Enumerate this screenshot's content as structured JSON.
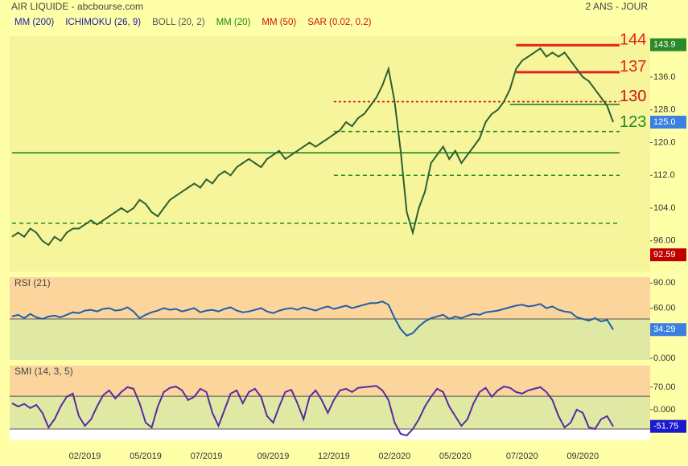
{
  "chart_data": [
    {
      "type": "line",
      "title": "AIR LIQUIDE - abcbourse.com",
      "subtitle": "2 ANS - JOUR",
      "indicators": [
        {
          "name": "MM (200)",
          "color": "#1a1aa8"
        },
        {
          "name": "ICHIMOKU (26, 9)",
          "color": "#1a1aa8"
        },
        {
          "name": "BOLL (20, 2)",
          "color": "#555555"
        },
        {
          "name": "MM (20)",
          "color": "#1f8a1f"
        },
        {
          "name": "MM (50)",
          "color": "#d01010"
        },
        {
          "name": "SAR (0.02, 0.2)",
          "color": "#d01010"
        }
      ],
      "color": "#2e5f2e",
      "background": "#f6f59c",
      "values": [
        97,
        98,
        97,
        99,
        98,
        96,
        95,
        97,
        96,
        98,
        99,
        99,
        100,
        101,
        100,
        101,
        102,
        103,
        104,
        103,
        104,
        106,
        105,
        103,
        102,
        104,
        106,
        107,
        108,
        109,
        110,
        109,
        111,
        110,
        112,
        113,
        112,
        114,
        115,
        116,
        115,
        114,
        116,
        117,
        118,
        116,
        117,
        118,
        119,
        120,
        119,
        120,
        121,
        122,
        123,
        125,
        124,
        126,
        127,
        129,
        131,
        134,
        138,
        130,
        118,
        103,
        98,
        104,
        108,
        115,
        117,
        119,
        116,
        118,
        115,
        117,
        119,
        121,
        125,
        127,
        128,
        130,
        133,
        138,
        140,
        141,
        142,
        143,
        141,
        142,
        141,
        142,
        140,
        138,
        136,
        135,
        133,
        131,
        129,
        125
      ],
      "ylim": [
        88.5,
        146
      ],
      "yticks": [
        {
          "value": 96,
          "label": "96.00"
        },
        {
          "value": 104,
          "label": "104.0"
        },
        {
          "value": 112,
          "label": "112.0"
        },
        {
          "value": 120,
          "label": "120.0"
        },
        {
          "value": 128,
          "label": "128.0"
        },
        {
          "value": 136,
          "label": "136.0"
        }
      ],
      "levels": [
        {
          "value": 143.8,
          "label": "144",
          "color": "#e8201a",
          "style": "solid",
          "start": 83
        },
        {
          "value": 137.2,
          "label": "137",
          "color": "#e8201a",
          "style": "solid",
          "start": 83
        },
        {
          "value": 130,
          "label": "130",
          "color": "#d01010",
          "style": "dotted",
          "start": 53
        },
        {
          "value": 129.3,
          "color": "#1f8a1f",
          "style": "solid",
          "start": 82
        },
        {
          "value": 122.7,
          "label": "123",
          "color": "#1f8a1f",
          "style": "dashed",
          "start": 53
        },
        {
          "value": 117.5,
          "color": "#1f8a1f",
          "style": "solid",
          "start": 0
        },
        {
          "value": 112,
          "color": "#1f8a1f",
          "style": "dashed",
          "start": 53
        },
        {
          "value": 100.3,
          "color": "#1f8a1f",
          "style": "dashed",
          "start": 0
        }
      ],
      "markers": [
        {
          "value": 143.9,
          "color": "#2a8a2a"
        },
        {
          "value": 125.0,
          "label": "125.0",
          "color": "#3b7fe0"
        },
        {
          "value": 92.59,
          "color": "#c00000"
        }
      ]
    },
    {
      "type": "line",
      "title": "RSI (21)",
      "color": "#1f5faa",
      "zone_colors": [
        "#fcd59c",
        "#dfe9a3"
      ],
      "reference_lines": [
        47
      ],
      "values": [
        50,
        52,
        48,
        53,
        49,
        47,
        50,
        51,
        49,
        52,
        55,
        54,
        57,
        58,
        56,
        59,
        60,
        57,
        58,
        61,
        56,
        48,
        52,
        55,
        57,
        60,
        58,
        59,
        56,
        58,
        60,
        55,
        57,
        58,
        56,
        59,
        61,
        57,
        55,
        56,
        58,
        60,
        56,
        54,
        57,
        59,
        60,
        58,
        61,
        59,
        57,
        60,
        62,
        59,
        61,
        63,
        60,
        62,
        64,
        66,
        66,
        68,
        64,
        48,
        35,
        27,
        30,
        38,
        44,
        48,
        50,
        52,
        47,
        50,
        48,
        51,
        53,
        52,
        55,
        56,
        57,
        59,
        61,
        63,
        64,
        62,
        63,
        65,
        60,
        62,
        58,
        56,
        55,
        49,
        47,
        45,
        48,
        44,
        46,
        34.29
      ],
      "ylim": [
        -2,
        97
      ],
      "yticks": [
        {
          "value": 0,
          "label": "0.000"
        },
        {
          "value": 60,
          "label": "60.00"
        },
        {
          "value": 90,
          "label": "90.00"
        }
      ],
      "markers": [
        {
          "value": 34.29,
          "color": "#3b7fe0"
        }
      ]
    },
    {
      "type": "line",
      "title": "SMI (14, 3, 5)",
      "color": "#5a2aa0",
      "zone_colors": [
        "#fcd59c",
        "#dfe9a3"
      ],
      "reference_lines": [
        42,
        -60
      ],
      "values": [
        20,
        10,
        18,
        5,
        15,
        -10,
        -55,
        -30,
        10,
        40,
        50,
        -20,
        -50,
        -30,
        10,
        45,
        60,
        35,
        55,
        70,
        65,
        20,
        -40,
        -55,
        10,
        55,
        68,
        72,
        60,
        30,
        40,
        65,
        55,
        -10,
        -50,
        0,
        50,
        60,
        20,
        55,
        65,
        40,
        -20,
        -40,
        10,
        55,
        62,
        20,
        -30,
        40,
        60,
        30,
        -10,
        30,
        60,
        65,
        55,
        68,
        70,
        72,
        74,
        60,
        30,
        -40,
        -75,
        -80,
        -60,
        -30,
        10,
        40,
        65,
        55,
        10,
        -20,
        -50,
        -30,
        20,
        55,
        68,
        40,
        60,
        72,
        68,
        55,
        50,
        60,
        65,
        70,
        55,
        30,
        -20,
        -55,
        -40,
        0,
        -10,
        -55,
        -60,
        -30,
        -20,
        -51.75
      ],
      "ylim": [
        -95,
        137
      ],
      "yticks": [
        {
          "value": 0,
          "label": "0.000"
        },
        {
          "value": 70,
          "label": "70.00"
        }
      ],
      "markers": [
        {
          "value": -51.75,
          "color": "#1a1acc"
        }
      ],
      "categories": [
        null,
        null,
        null,
        null,
        null,
        null,
        null,
        null,
        null,
        null,
        null,
        null,
        "02/2019",
        null,
        null,
        null,
        null,
        null,
        null,
        null,
        null,
        null,
        "05/2019",
        null,
        null,
        null,
        null,
        null,
        null,
        null,
        null,
        null,
        "07/2019",
        null,
        null,
        null,
        null,
        null,
        null,
        null,
        null,
        null,
        null,
        "09/2019",
        null,
        null,
        null,
        null,
        null,
        null,
        null,
        null,
        null,
        "12/2019",
        null,
        null,
        null,
        null,
        null,
        null,
        null,
        null,
        null,
        "02/2020",
        null,
        null,
        null,
        null,
        null,
        null,
        null,
        null,
        null,
        "05/2020",
        null,
        null,
        null,
        null,
        null,
        null,
        null,
        null,
        null,
        null,
        "07/2020",
        null,
        null,
        null,
        null,
        null,
        null,
        null,
        null,
        null,
        "09/2020",
        null,
        null,
        null,
        null,
        null
      ]
    }
  ]
}
